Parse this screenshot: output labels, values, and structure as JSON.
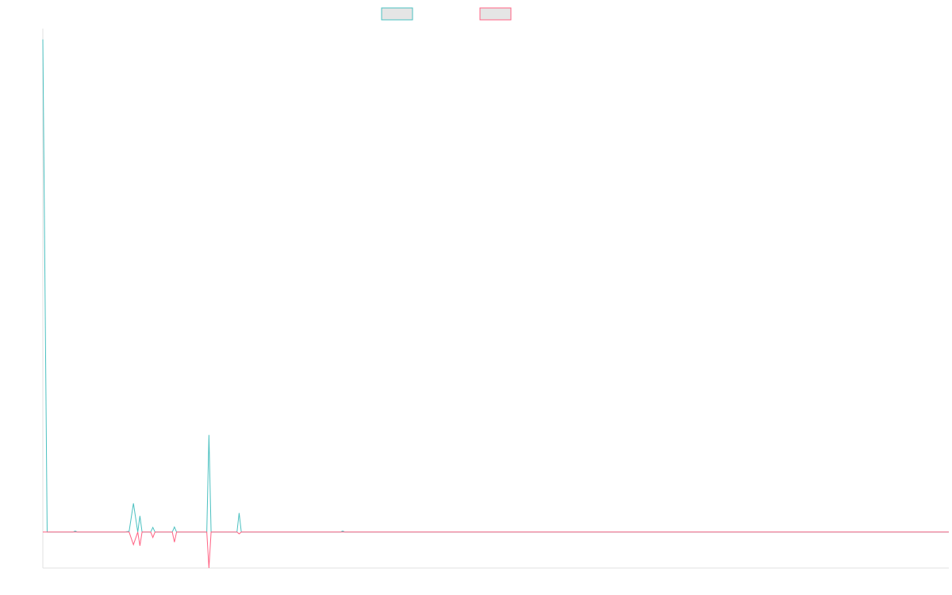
{
  "chart_data": {
    "type": "line",
    "title": "",
    "xlabel": "",
    "ylabel": "",
    "legend": {
      "placement": "top-center",
      "show_labels": false
    },
    "grid": false,
    "n_points": 211,
    "xlim": [
      0,
      210
    ],
    "ylim": [
      -10,
      140
    ],
    "series": [
      {
        "color": "#4bc0c0",
        "fill": "#e5e5e5",
        "points": [
          [
            0,
            137
          ],
          [
            1,
            0
          ],
          [
            7,
            0
          ],
          [
            7.5,
            0.3
          ],
          [
            8,
            0
          ],
          [
            19,
            0
          ],
          [
            20,
            0.2
          ],
          [
            21,
            8
          ],
          [
            22,
            0
          ],
          [
            22.5,
            4.5
          ],
          [
            23,
            0
          ],
          [
            25,
            0
          ],
          [
            25.5,
            1.3
          ],
          [
            26,
            0
          ],
          [
            30,
            0
          ],
          [
            30.5,
            1.4
          ],
          [
            31,
            0
          ],
          [
            38,
            0
          ],
          [
            38.5,
            27
          ],
          [
            39,
            0
          ],
          [
            45,
            0
          ],
          [
            45.5,
            5.3
          ],
          [
            46,
            0
          ],
          [
            69,
            0
          ],
          [
            69.5,
            0.3
          ],
          [
            70,
            0
          ],
          [
            210,
            0
          ]
        ]
      },
      {
        "color": "#ff6384",
        "fill": "#e5e5e5",
        "points": [
          [
            0,
            0
          ],
          [
            20,
            0
          ],
          [
            21,
            -3.5
          ],
          [
            22,
            0
          ],
          [
            22.5,
            -3.8
          ],
          [
            23,
            0
          ],
          [
            25,
            0
          ],
          [
            25.5,
            -1.5
          ],
          [
            26,
            0
          ],
          [
            30,
            0
          ],
          [
            30.5,
            -2.8
          ],
          [
            31,
            0
          ],
          [
            38,
            0
          ],
          [
            38.5,
            -10
          ],
          [
            39,
            0
          ],
          [
            45,
            0
          ],
          [
            45.5,
            -0.5
          ],
          [
            46,
            0
          ],
          [
            210,
            0
          ]
        ]
      }
    ]
  }
}
